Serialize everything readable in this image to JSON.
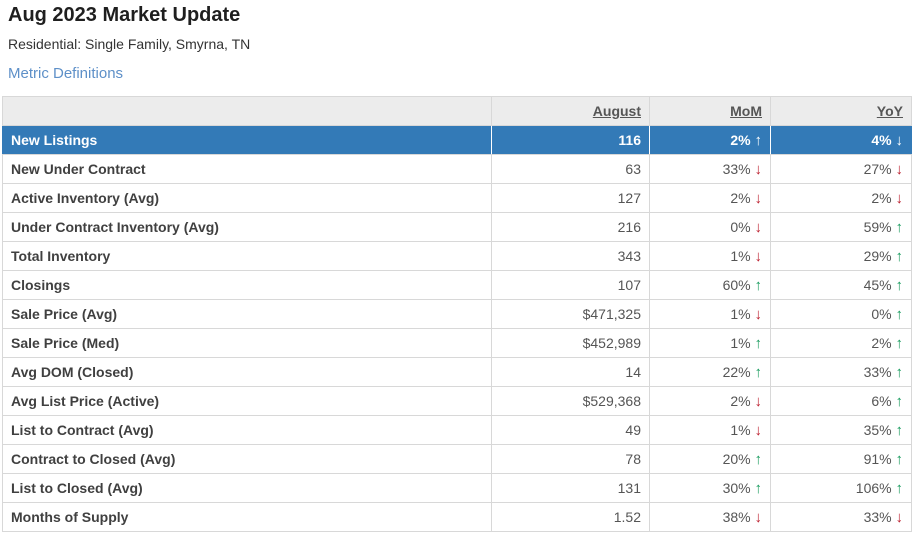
{
  "page": {
    "title": "Aug 2023 Market Update",
    "subtitle": "Residential: Single Family, Smyrna, TN",
    "metric_definitions_link": "Metric Definitions"
  },
  "colors": {
    "highlight_row_blue": "#337ab7",
    "trend_up_green": "#169a5c",
    "trend_down_red": "#bd2130",
    "link_blue": "#5e90c8",
    "header_bg": "#ececec"
  },
  "table": {
    "columns": [
      "August",
      "MoM",
      "YoY"
    ],
    "rows": [
      {
        "label": "New Listings",
        "value": "116",
        "mom_pct": "2%",
        "mom_arrow": "↑",
        "mom_dir": "up",
        "yoy_pct": "4%",
        "yoy_arrow": "↓",
        "yoy_dir": "down",
        "state": "highlight"
      },
      {
        "label": "New Under Contract",
        "value": "63",
        "mom_pct": "33%",
        "mom_arrow": "↓",
        "mom_dir": "down",
        "yoy_pct": "27%",
        "yoy_arrow": "↓",
        "yoy_dir": "down",
        "state": ""
      },
      {
        "label": "Active Inventory (Avg)",
        "value": "127",
        "mom_pct": "2%",
        "mom_arrow": "↓",
        "mom_dir": "down",
        "yoy_pct": "2%",
        "yoy_arrow": "↓",
        "yoy_dir": "down",
        "state": ""
      },
      {
        "label": "Under Contract Inventory (Avg)",
        "value": "216",
        "mom_pct": "0%",
        "mom_arrow": "↓",
        "mom_dir": "down",
        "yoy_pct": "59%",
        "yoy_arrow": "↑",
        "yoy_dir": "up",
        "state": ""
      },
      {
        "label": "Total Inventory",
        "value": "343",
        "mom_pct": "1%",
        "mom_arrow": "↓",
        "mom_dir": "down",
        "yoy_pct": "29%",
        "yoy_arrow": "↑",
        "yoy_dir": "up",
        "state": ""
      },
      {
        "label": "Closings",
        "value": "107",
        "mom_pct": "60%",
        "mom_arrow": "↑",
        "mom_dir": "up",
        "yoy_pct": "45%",
        "yoy_arrow": "↑",
        "yoy_dir": "up",
        "state": ""
      },
      {
        "label": "Sale Price (Avg)",
        "value": "$471,325",
        "mom_pct": "1%",
        "mom_arrow": "↓",
        "mom_dir": "down",
        "yoy_pct": "0%",
        "yoy_arrow": "↑",
        "yoy_dir": "up",
        "state": ""
      },
      {
        "label": "Sale Price (Med)",
        "value": "$452,989",
        "mom_pct": "1%",
        "mom_arrow": "↑",
        "mom_dir": "up",
        "yoy_pct": "2%",
        "yoy_arrow": "↑",
        "yoy_dir": "up",
        "state": ""
      },
      {
        "label": "Avg DOM (Closed)",
        "value": "14",
        "mom_pct": "22%",
        "mom_arrow": "↑",
        "mom_dir": "up",
        "yoy_pct": "33%",
        "yoy_arrow": "↑",
        "yoy_dir": "up",
        "state": ""
      },
      {
        "label": "Avg List Price (Active)",
        "value": "$529,368",
        "mom_pct": "2%",
        "mom_arrow": "↓",
        "mom_dir": "down",
        "yoy_pct": "6%",
        "yoy_arrow": "↑",
        "yoy_dir": "up",
        "state": ""
      },
      {
        "label": "List to Contract (Avg)",
        "value": "49",
        "mom_pct": "1%",
        "mom_arrow": "↓",
        "mom_dir": "down",
        "yoy_pct": "35%",
        "yoy_arrow": "↑",
        "yoy_dir": "up",
        "state": ""
      },
      {
        "label": "Contract to Closed (Avg)",
        "value": "78",
        "mom_pct": "20%",
        "mom_arrow": "↑",
        "mom_dir": "up",
        "yoy_pct": "91%",
        "yoy_arrow": "↑",
        "yoy_dir": "up",
        "state": ""
      },
      {
        "label": "List to Closed (Avg)",
        "value": "131",
        "mom_pct": "30%",
        "mom_arrow": "↑",
        "mom_dir": "up",
        "yoy_pct": "106%",
        "yoy_arrow": "↑",
        "yoy_dir": "up",
        "state": ""
      },
      {
        "label": "Months of Supply",
        "value": "1.52",
        "mom_pct": "38%",
        "mom_arrow": "↓",
        "mom_dir": "down",
        "yoy_pct": "33%",
        "yoy_arrow": "↓",
        "yoy_dir": "down",
        "state": ""
      }
    ]
  }
}
